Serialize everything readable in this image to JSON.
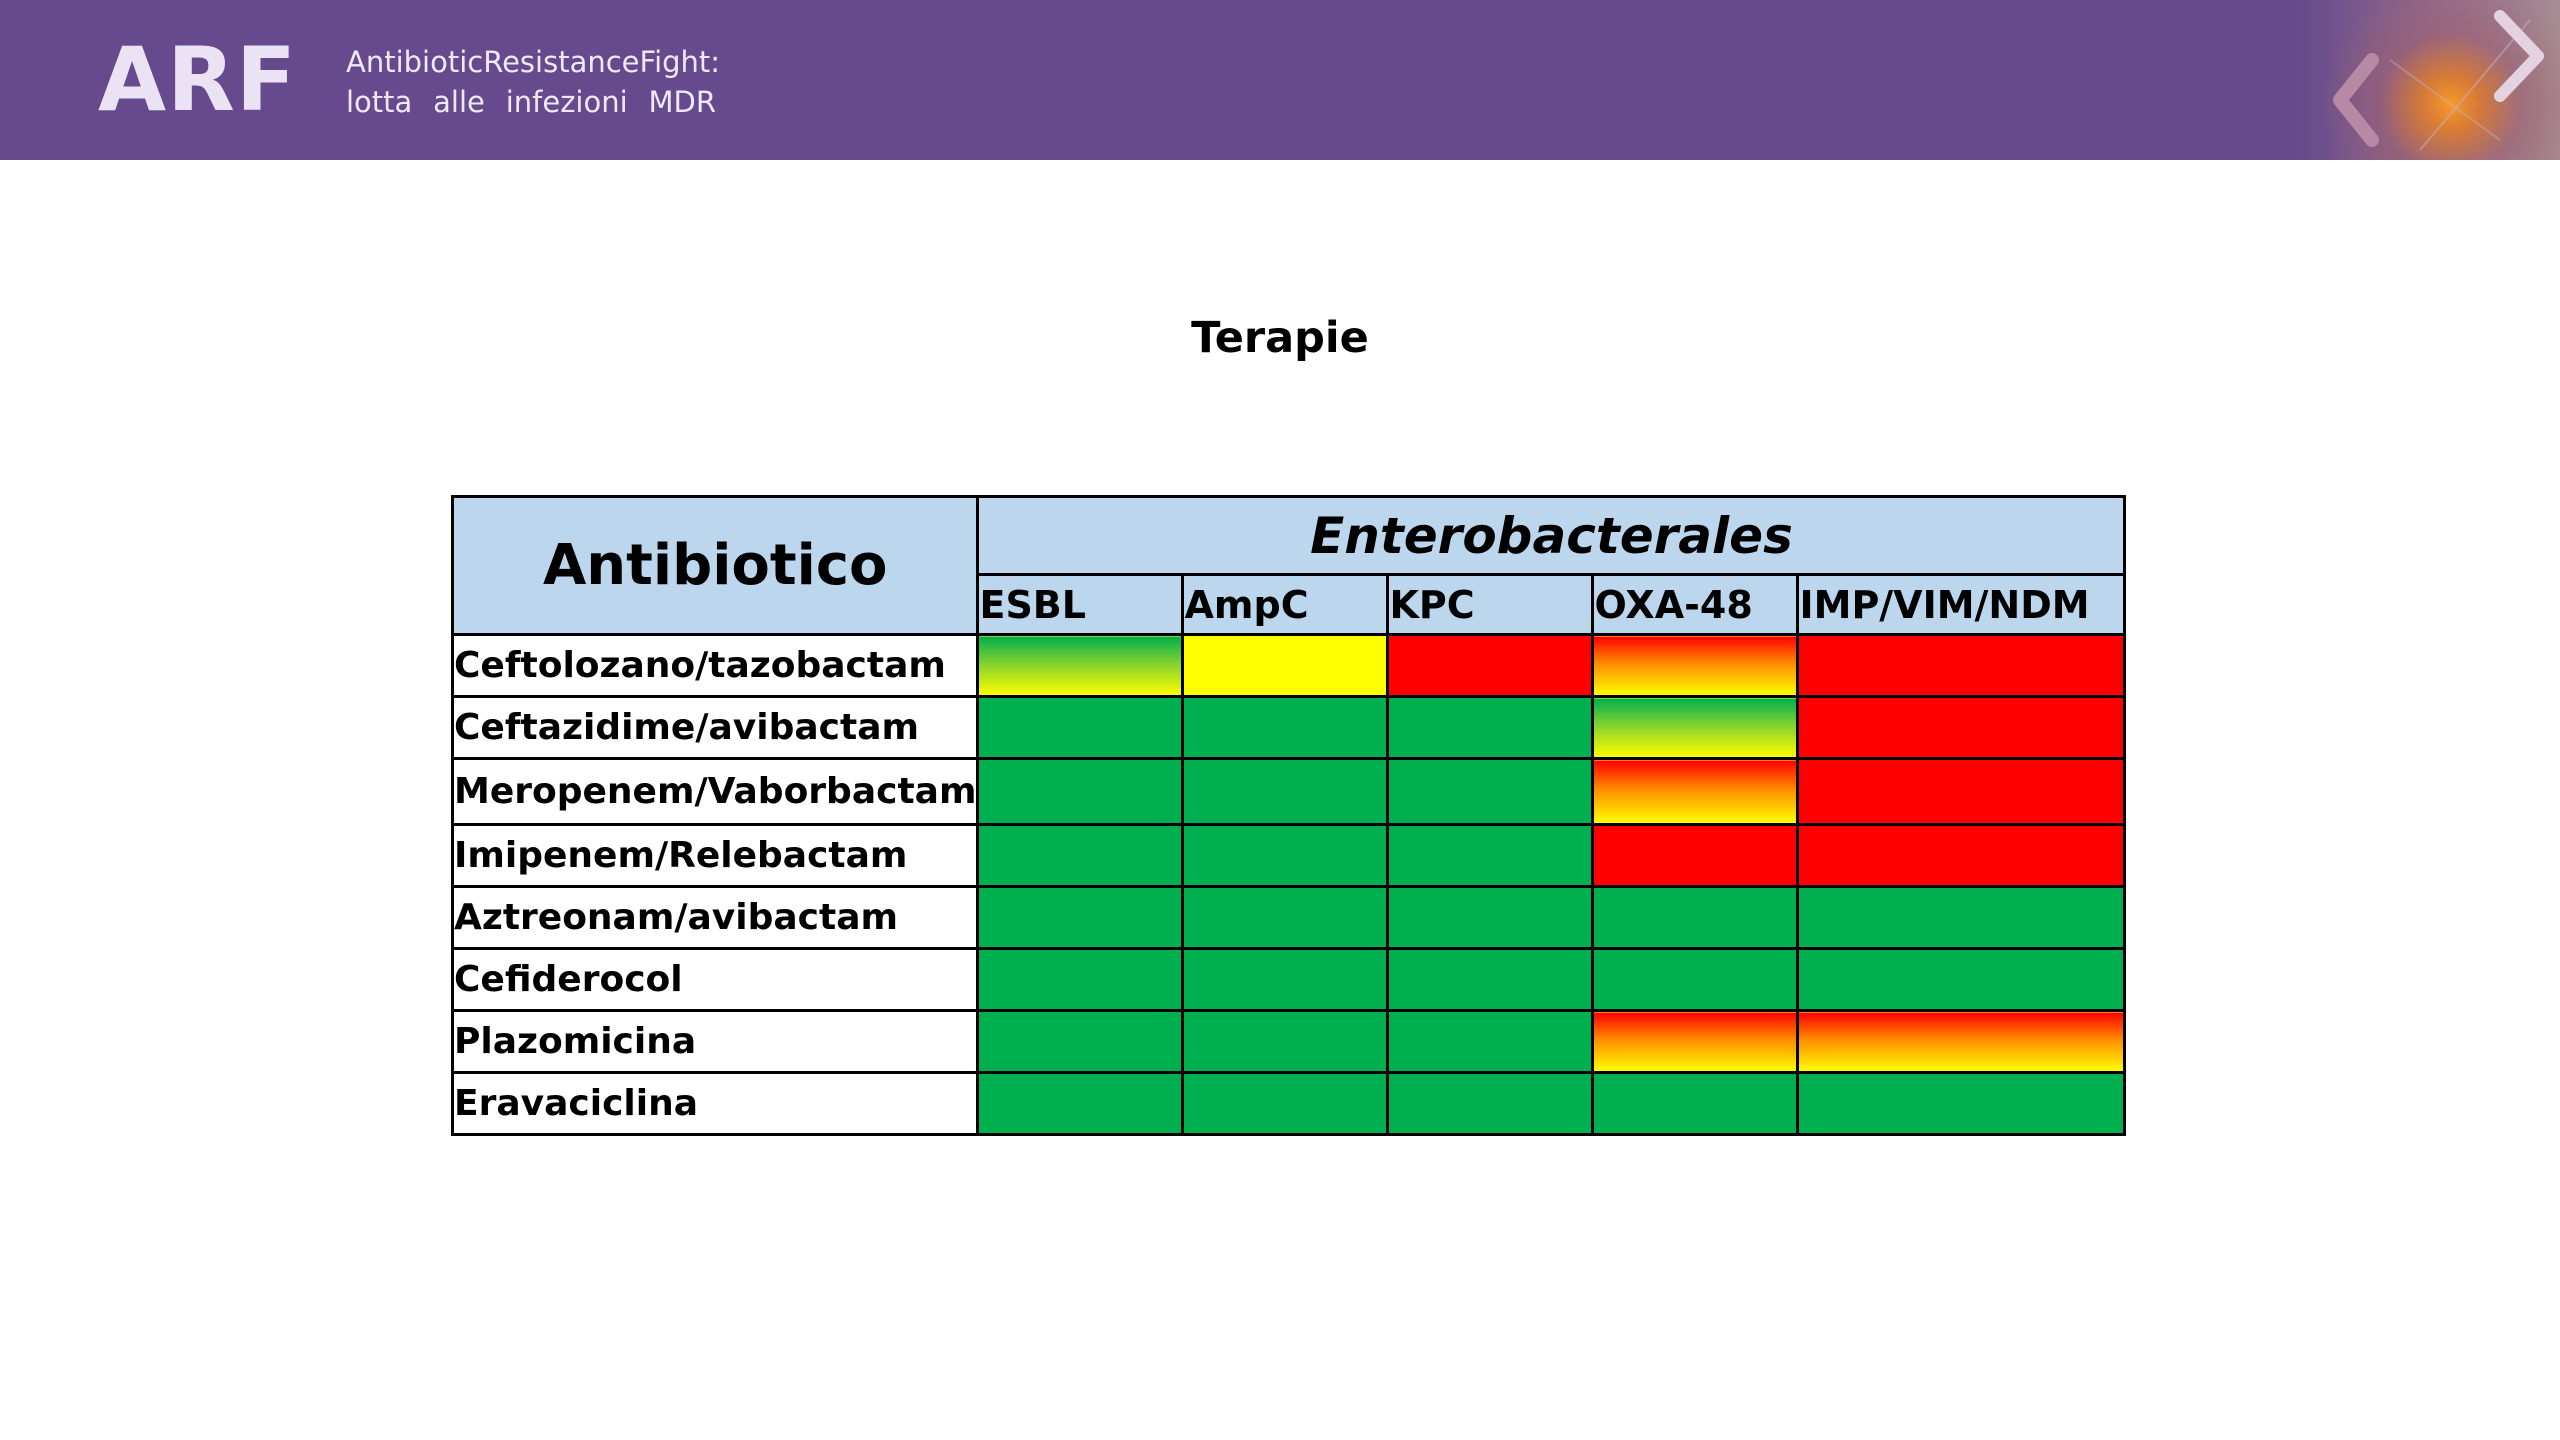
{
  "header": {
    "logo": "ARF",
    "tagline_line1": [
      "Antibiotic",
      "Resistance",
      "Fight:"
    ],
    "tagline_line2": [
      "lotta",
      "alle",
      "infezioni",
      "MDR"
    ],
    "prev_icon": "chevron-left-icon",
    "next_icon": "chevron-right-icon",
    "header_color": "#674a8d"
  },
  "slide": {
    "title": "Terapie"
  },
  "table": {
    "corner_label": "Antibiotico",
    "group_label": "Enterobacterales",
    "columns": [
      "ESBL",
      "AmpC",
      "KPC",
      "OXA-48",
      "IMP/VIM/NDM"
    ],
    "legend_colors": {
      "green": "#00b050",
      "red": "#ff0000",
      "yellow": "#ffff00"
    },
    "rows": [
      {
        "name": "Ceftolozano/tazobactam",
        "cells": [
          "green-yellow",
          "yellow",
          "red",
          "red-yellow",
          "red"
        ]
      },
      {
        "name": "Ceftazidime/avibactam",
        "cells": [
          "green",
          "green",
          "green",
          "green-yellow",
          "red"
        ]
      },
      {
        "name": "Meropenem/Vaborbactam",
        "cells": [
          "green",
          "green",
          "green",
          "red-yellow",
          "red"
        ]
      },
      {
        "name": "Imipenem/Relebactam",
        "cells": [
          "green",
          "green",
          "green",
          "red",
          "red"
        ]
      },
      {
        "name": "Aztreonam/avibactam",
        "cells": [
          "green",
          "green",
          "green",
          "green",
          "green"
        ]
      },
      {
        "name": "Cefiderocol",
        "cells": [
          "green",
          "green",
          "green",
          "green",
          "green"
        ]
      },
      {
        "name": "Plazomicina",
        "cells": [
          "green",
          "green",
          "green",
          "red-yellow",
          "red-yellow"
        ]
      },
      {
        "name": "Eravaciclina",
        "cells": [
          "green",
          "green",
          "green",
          "green",
          "green"
        ]
      }
    ]
  }
}
